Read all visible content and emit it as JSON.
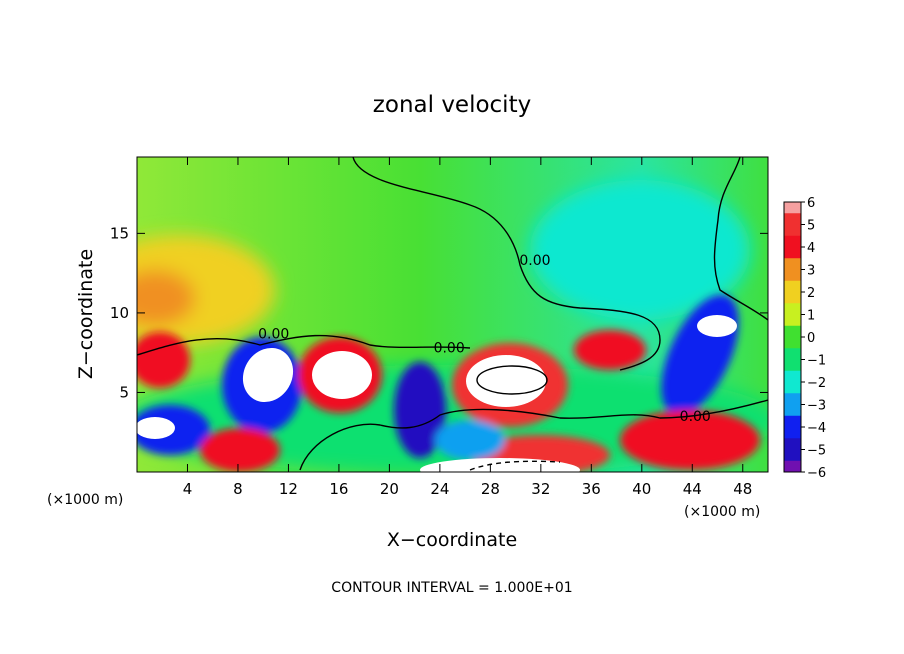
{
  "chart_data": {
    "type": "heatmap",
    "title": "zonal velocity",
    "xlabel": "X−coordinate",
    "ylabel": "Z−coordinate",
    "x_unit_left": "(×1000 m)",
    "x_unit_right": "(×1000 m)",
    "footer": "CONTOUR INTERVAL = 1.000E+01",
    "xlim": [
      0,
      50
    ],
    "ylim": [
      0,
      19.8
    ],
    "x_ticks": [
      "4",
      "8",
      "12",
      "16",
      "20",
      "24",
      "28",
      "32",
      "36",
      "40",
      "44",
      "48"
    ],
    "x_tick_values": [
      4,
      8,
      12,
      16,
      20,
      24,
      28,
      32,
      36,
      40,
      44,
      48
    ],
    "y_ticks": [
      "5",
      "10",
      "15"
    ],
    "y_tick_values": [
      5,
      10,
      15
    ],
    "colorbar": {
      "labels": [
        "6",
        "5",
        "4",
        "3",
        "2",
        "1",
        "0",
        "−1",
        "−2",
        "−3",
        "−4",
        "−5",
        "−6"
      ],
      "values": [
        6,
        5,
        4,
        3,
        2,
        1,
        0,
        -1,
        -2,
        -3,
        -4,
        -5,
        -6
      ],
      "colors": {
        "6": "#f5a0a0",
        "5": "#f03030",
        "4": "#f01020",
        "3": "#f09020",
        "2": "#f0d020",
        "1": "#c8f020",
        "0": "#40e030",
        "-1": "#10e070",
        "-2": "#10e8d0",
        "-3": "#10a0f0",
        "-4": "#1020f0",
        "-5": "#2010c0",
        "-6": "#7010b0"
      }
    },
    "contour_labels": [
      {
        "text": "0.00",
        "x": 9.6,
        "z": 8.4
      },
      {
        "text": "0.00",
        "x": 23.5,
        "z": 7.5
      },
      {
        "text": "0.00",
        "x": 30.3,
        "z": 13.0
      },
      {
        "text": "0.00",
        "x": 43.0,
        "z": 3.2
      }
    ]
  }
}
